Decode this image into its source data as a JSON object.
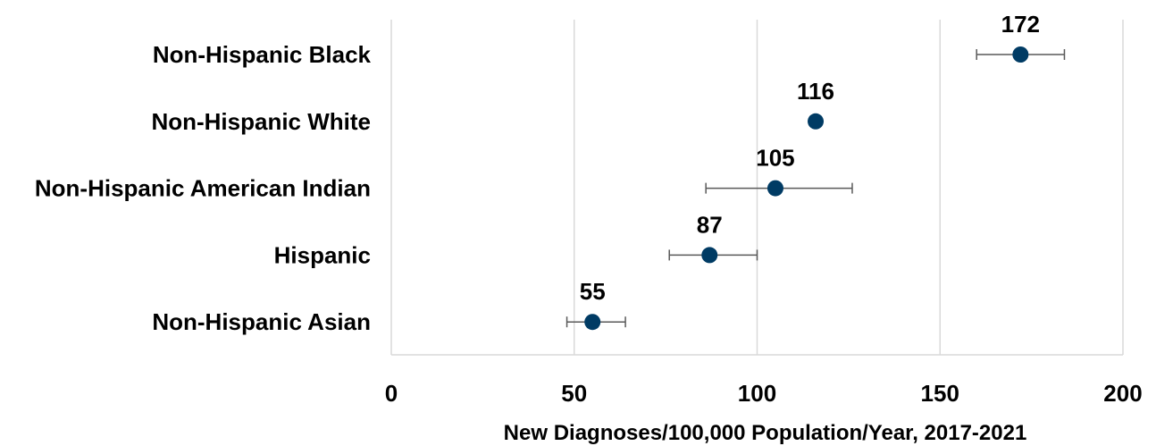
{
  "chart_data": {
    "type": "scatter",
    "orientation": "horizontal",
    "title": "",
    "xlabel": "New Diagnoses/100,000 Population/Year, 2017-2021",
    "ylabel": "",
    "xlim": [
      0,
      200
    ],
    "xticks": [
      0,
      50,
      100,
      150,
      200
    ],
    "grid": "vertical",
    "legend": "none",
    "marker_color": "#003b64",
    "errorbar_color": "#595959",
    "categories": [
      "Non-Hispanic Black",
      "Non-Hispanic White",
      "Non-Hispanic American Indian",
      "Hispanic",
      "Non-Hispanic Asian"
    ],
    "values": [
      172,
      116,
      105,
      87,
      55
    ],
    "data_labels": [
      "172",
      "116",
      "105",
      "87",
      "55"
    ],
    "error_low": [
      160,
      null,
      86,
      76,
      48
    ],
    "error_high": [
      184,
      null,
      126,
      100,
      64
    ]
  }
}
